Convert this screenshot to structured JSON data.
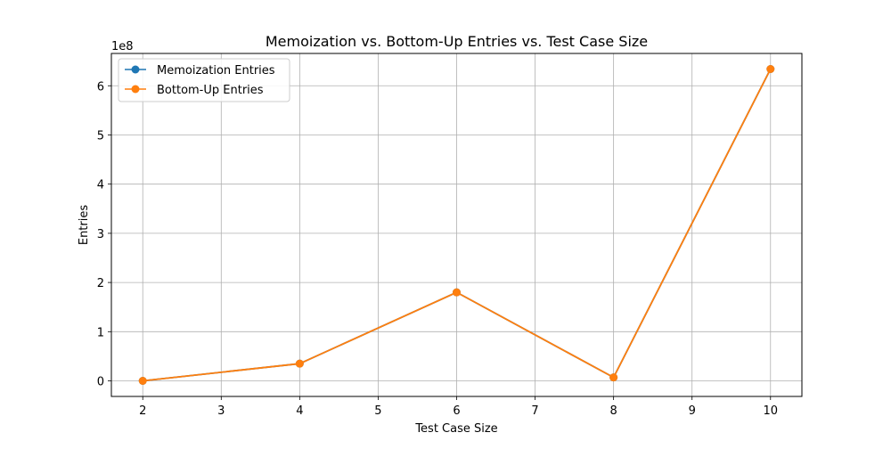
{
  "chart_data": {
    "type": "line",
    "title": "Memoization vs. Bottom-Up Entries vs. Test Case Size",
    "xlabel": "Test Case Size",
    "ylabel": "Entries",
    "y_offset_label": "1e8",
    "x": [
      2,
      4,
      6,
      8,
      10
    ],
    "xlim": [
      1.6,
      10.4
    ],
    "ylim": [
      -31700000,
      665700000
    ],
    "x_ticks": [
      2,
      3,
      4,
      5,
      6,
      7,
      8,
      9,
      10
    ],
    "y_ticks": [
      0,
      1,
      2,
      3,
      4,
      5,
      6
    ],
    "y_tick_scale": 100000000,
    "grid": true,
    "legend_position": "top-left",
    "series": [
      {
        "name": "Memoization Entries",
        "color": "#1f77b4",
        "marker": "circle",
        "values": [
          100,
          35000000,
          180000000,
          7000000,
          634000000
        ]
      },
      {
        "name": "Bottom-Up Entries",
        "color": "#ff7f0e",
        "marker": "circle",
        "values": [
          100,
          35000000,
          180000000,
          7000000,
          634000000
        ]
      }
    ]
  }
}
